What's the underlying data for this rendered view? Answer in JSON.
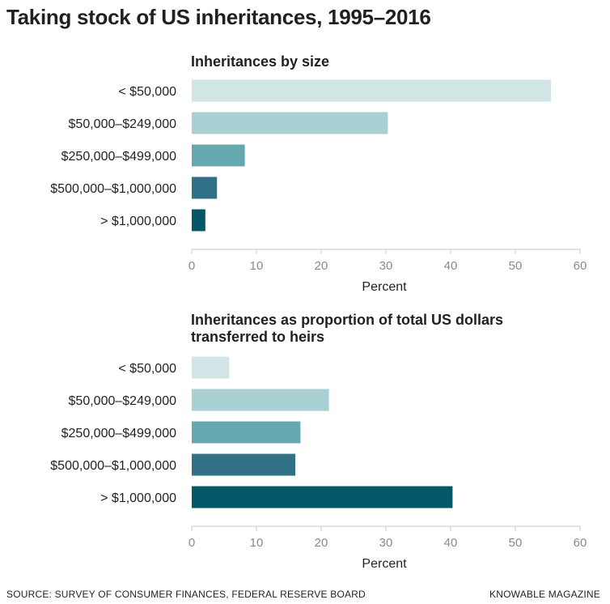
{
  "title": "Taking stock of US inheritances, 1995–2016",
  "chart_data": [
    {
      "type": "bar",
      "orientation": "horizontal",
      "title": "Inheritances by size",
      "categories": [
        "< $50,000",
        "$50,000–$249,000",
        "$250,000–$499,000",
        "$500,000–$1,000,000",
        "> $1,000,000"
      ],
      "values": [
        55.5,
        30.3,
        8.2,
        3.9,
        2.1
      ],
      "xlabel": "Percent",
      "xlim": [
        0,
        60
      ],
      "xticks": [
        "0",
        "10",
        "20",
        "30",
        "40",
        "50",
        "60"
      ],
      "grid": false,
      "colors": [
        "#d1e5e7",
        "#a8cfd2",
        "#66a8af",
        "#327088",
        "#035766"
      ]
    },
    {
      "type": "bar",
      "orientation": "horizontal",
      "title": "Inheritances as proportion of total US dollars transferred to heirs",
      "categories": [
        "< $50,000",
        "$50,000–$249,000",
        "$250,000–$499,000",
        "$500,000–$1,000,000",
        "> $1,000,000"
      ],
      "values": [
        5.8,
        21.2,
        16.8,
        16.0,
        40.3
      ],
      "xlabel": "Percent",
      "xlim": [
        0,
        60
      ],
      "xticks": [
        "0",
        "10",
        "20",
        "30",
        "40",
        "50",
        "60"
      ],
      "grid": false,
      "colors": [
        "#d1e5e7",
        "#a8cfd2",
        "#66a8af",
        "#327088",
        "#035766"
      ]
    }
  ],
  "footer": {
    "source": "SOURCE: SURVEY OF CONSUMER FINANCES, FEDERAL RESERVE BOARD",
    "brand": "KNOWABLE MAGAZINE"
  }
}
